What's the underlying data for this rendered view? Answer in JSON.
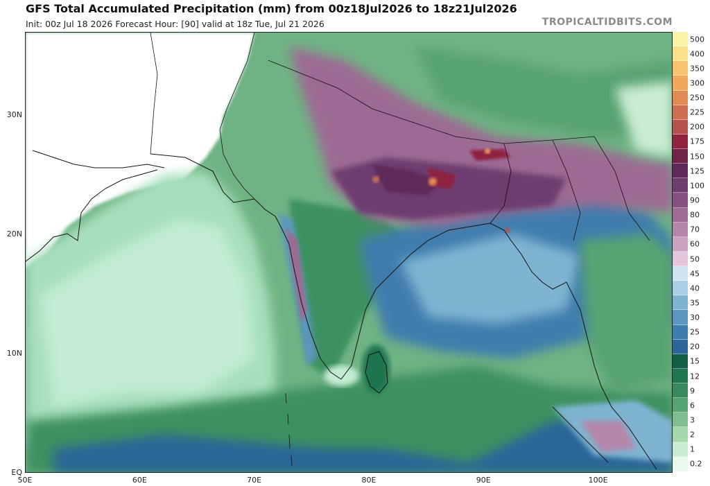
{
  "header": {
    "title": "GFS Total Accumulated Precipitation (mm) from 00z18Jul2026 to 18z21Jul2026",
    "subtitle": "Init: 00z Jul 18 2026   Forecast Hour: [90]   valid at 18z Tue, Jul 21 2026",
    "brand": "TROPICALTIDBITS.COM"
  },
  "map": {
    "lat_labels": [
      "30N",
      "20N",
      "10N",
      "EQ"
    ],
    "lat_values": [
      30,
      20,
      10,
      0
    ],
    "lon_labels": [
      "50E",
      "60E",
      "70E",
      "80E",
      "90E",
      "100E"
    ],
    "lon_values": [
      50,
      60,
      70,
      80,
      90,
      100
    ],
    "extent": {
      "lon_min": 50,
      "lon_max": 106.5,
      "lat_min": 0,
      "lat_max": 37
    }
  },
  "colorbar": {
    "labels": [
      "500",
      "400",
      "350",
      "300",
      "250",
      "225",
      "200",
      "175",
      "150",
      "125",
      "100",
      "90",
      "80",
      "70",
      "60",
      "50",
      "45",
      "40",
      "35",
      "30",
      "25",
      "20",
      "15",
      "12",
      "9",
      "6",
      "3",
      "2",
      "1",
      "0.2"
    ],
    "colors": [
      "#fdf3a8",
      "#fbe08a",
      "#f8c370",
      "#f1a85c",
      "#e08a56",
      "#cc6e52",
      "#b5524d",
      "#8f2340",
      "#702448",
      "#5e2a58",
      "#6d3d70",
      "#85527f",
      "#9d6b93",
      "#b586a9",
      "#cba2c0",
      "#e2c6dc",
      "#cfe4f2",
      "#a8cfe3",
      "#7fb4d1",
      "#5b96bf",
      "#3f7dad",
      "#2c6698",
      "#135d46",
      "#1f7550",
      "#378a5d",
      "#58a372",
      "#7fbd8c",
      "#a4d7ac",
      "#c9ecd2",
      "#e9f9ee"
    ]
  }
}
